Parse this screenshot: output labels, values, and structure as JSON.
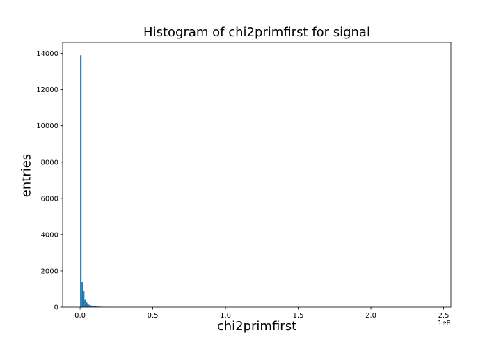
{
  "chart_data": {
    "type": "bar",
    "title": "Histogram of chi2primfirst for signal",
    "xlabel": "chi2primfirst",
    "ylabel": "entries",
    "x_offset_label": "1e8",
    "x_scale": 100000000,
    "xlim": [
      -0.12,
      2.55
    ],
    "ylim": [
      0,
      14600
    ],
    "xticks": [
      0.0,
      0.5,
      1.0,
      1.5,
      2.0,
      2.5
    ],
    "xtick_labels": [
      "0.0",
      "0.5",
      "1.0",
      "1.5",
      "2.0",
      "2.5"
    ],
    "yticks": [
      0,
      2000,
      4000,
      6000,
      8000,
      10000,
      12000,
      14000
    ],
    "ytick_labels": [
      "0",
      "2000",
      "4000",
      "6000",
      "8000",
      "10000",
      "12000",
      "14000"
    ],
    "bin_width": 0.01,
    "bins_start": 0.0,
    "values": [
      13900,
      1380,
      880,
      400,
      260,
      180,
      120,
      90,
      70,
      55,
      40,
      35,
      30,
      25,
      20,
      18,
      15,
      10,
      8,
      6
    ],
    "color": "#1f77b4",
    "grid": false
  }
}
